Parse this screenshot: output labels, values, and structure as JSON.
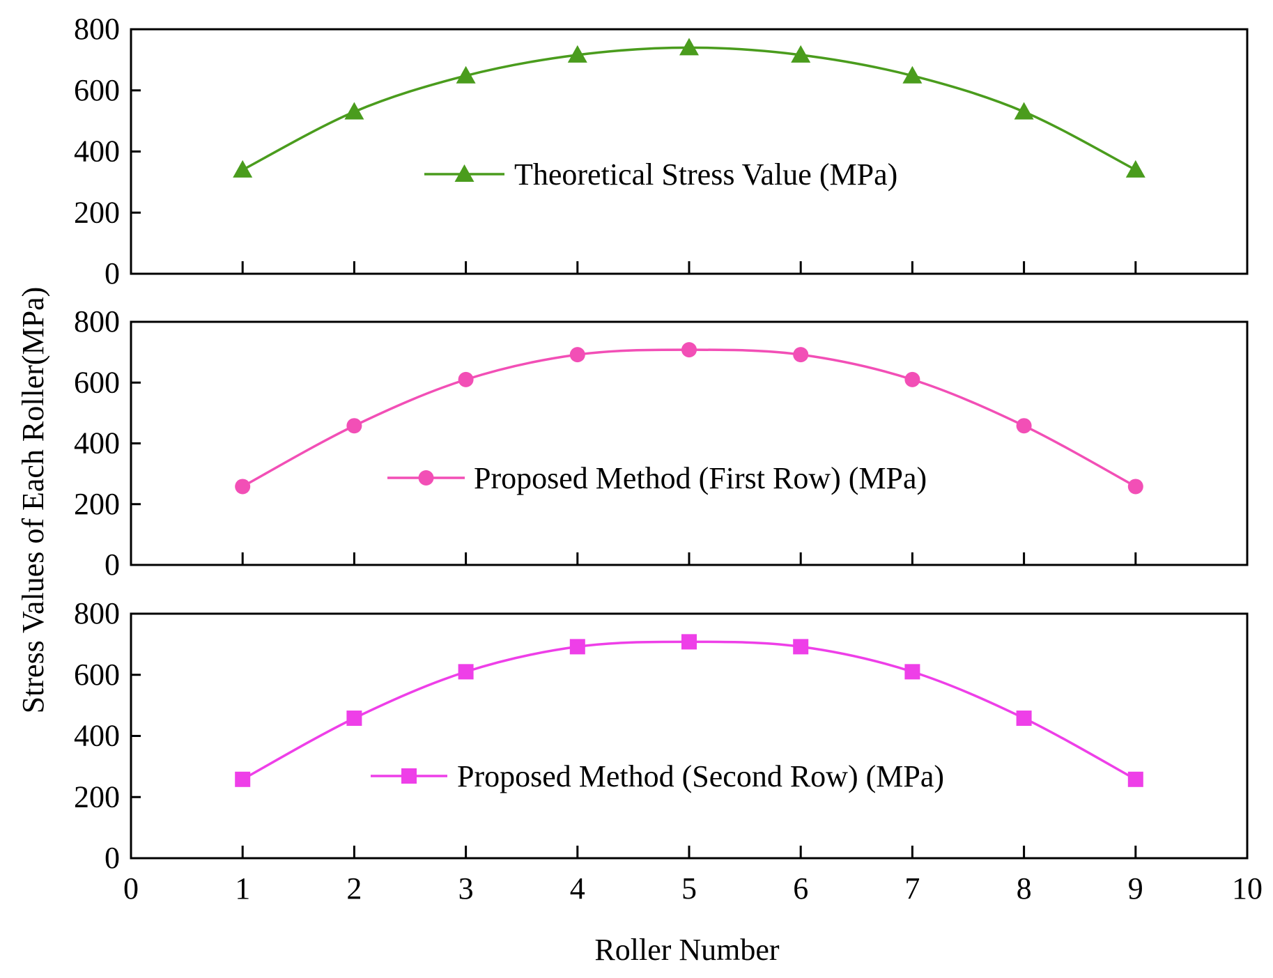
{
  "figure": {
    "xlabel": "Roller Number",
    "ylabel": "Stress Values of Each Roller(MPa)",
    "x_tick_labels": [
      "0",
      "1",
      "2",
      "3",
      "4",
      "5",
      "6",
      "7",
      "8",
      "9",
      "10"
    ]
  },
  "chart_data": [
    {
      "type": "line",
      "title": "",
      "xlim": [
        0,
        10
      ],
      "ylim": [
        0,
        800
      ],
      "y_tick_labels": [
        "0",
        "200",
        "400",
        "600",
        "800"
      ],
      "legend_placement": "center",
      "series": [
        {
          "name": "Theoretical Stress Value (MPa)",
          "marker": "triangle",
          "color": "#4a9c1d",
          "x": [
            1,
            2,
            3,
            4,
            5,
            6,
            7,
            8,
            9
          ],
          "values": [
            340,
            530,
            648,
            716,
            740,
            716,
            648,
            530,
            340
          ]
        }
      ]
    },
    {
      "type": "line",
      "title": "",
      "xlim": [
        0,
        10
      ],
      "ylim": [
        0,
        800
      ],
      "y_tick_labels": [
        "0",
        "200",
        "400",
        "600",
        "800"
      ],
      "legend_placement": "center",
      "series": [
        {
          "name": "Proposed Method (First Row) (MPa)",
          "marker": "circle",
          "color": "#f24fb6",
          "x": [
            1,
            2,
            3,
            4,
            5,
            6,
            7,
            8,
            9
          ],
          "values": [
            258,
            458,
            610,
            692,
            708,
            692,
            610,
            458,
            258
          ]
        }
      ]
    },
    {
      "type": "line",
      "title": "",
      "xlim": [
        0,
        10
      ],
      "ylim": [
        0,
        800
      ],
      "y_tick_labels": [
        "0",
        "200",
        "400",
        "600",
        "800"
      ],
      "legend_placement": "center",
      "series": [
        {
          "name": "Proposed Method (Second Row) (MPa)",
          "marker": "square",
          "color": "#ee3fe8",
          "x": [
            1,
            2,
            3,
            4,
            5,
            6,
            7,
            8,
            9
          ],
          "values": [
            258,
            458,
            610,
            692,
            708,
            692,
            610,
            458,
            258
          ]
        }
      ]
    }
  ]
}
